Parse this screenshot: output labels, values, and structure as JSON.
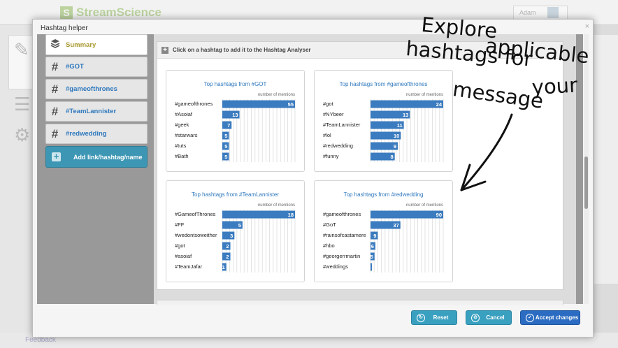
{
  "background": {
    "logo_letter": "S",
    "logo_text": "StreamScience",
    "user_name": "Adam",
    "footer_text": "Feedback"
  },
  "modal": {
    "title": "Hashtag helper",
    "close_glyph": "×"
  },
  "tabs": [
    {
      "label": "Summary",
      "icon": "layers-icon",
      "active": true
    },
    {
      "label": "#GOT",
      "icon": "hashtag-icon",
      "active": false
    },
    {
      "label": "#gameofthrones",
      "icon": "hashtag-icon",
      "active": false
    },
    {
      "label": "#TeamLannister",
      "icon": "hashtag-icon",
      "active": false
    },
    {
      "label": "#redwedding",
      "icon": "hashtag-icon",
      "active": false
    }
  ],
  "add_button": {
    "label": "Add link/hashtag/name",
    "icon": "plus-icon"
  },
  "panel_header": "Click on a hashtag to add it to the Hashtag Analyser",
  "chart_data": [
    {
      "type": "bar",
      "title": "Top hashtags from #GOT",
      "xlabel": "number of mentions",
      "categories": [
        "#gameofthrones",
        "#Asoiaf",
        "#geek",
        "#starwars",
        "#tuts",
        "#Bath"
      ],
      "values": [
        55,
        13,
        7,
        5,
        5,
        5
      ],
      "xlim": [
        0,
        55
      ]
    },
    {
      "type": "bar",
      "title": "Top hashtags from #gameofthrones",
      "xlabel": "number of mentions",
      "categories": [
        "#got",
        "#NYbeer",
        "#TeamLannister",
        "#lol",
        "#redwedding",
        "#funny"
      ],
      "values": [
        24,
        13,
        11,
        10,
        9,
        8
      ],
      "xlim": [
        0,
        24
      ]
    },
    {
      "type": "bar",
      "title": "Top hashtags from #TeamLannister",
      "xlabel": "number of mentions",
      "categories": [
        "#GameofThrones",
        "#FF",
        "#wedontsoweither",
        "#got",
        "#asoiaf",
        "#TeamJafar"
      ],
      "values": [
        18,
        5,
        3,
        2,
        2,
        1
      ],
      "xlim": [
        0,
        18
      ]
    },
    {
      "type": "bar",
      "title": "Top hashtags from #redwedding",
      "xlabel": "number of mentions",
      "categories": [
        "#gameofthrones",
        "#GoT",
        "#rainsofcastamere",
        "#hbo",
        "#georgerrmartin",
        "#weddings"
      ],
      "values": [
        90,
        37,
        9,
        6,
        5,
        1
      ],
      "xlim": [
        0,
        90
      ]
    }
  ],
  "buttons": {
    "reset": "Reset",
    "cancel": "Cancel",
    "accept": "Accept changes"
  },
  "annotation": {
    "lines": [
      "Explore",
      "applicable",
      "hashtags for",
      "your",
      "message"
    ]
  },
  "colors": {
    "bar": "#3b7bbf",
    "accent": "#2e78bd",
    "active_tab": "#a8982e",
    "accept": "#2b6cc2",
    "secondary_button": "#3aa0c0"
  }
}
